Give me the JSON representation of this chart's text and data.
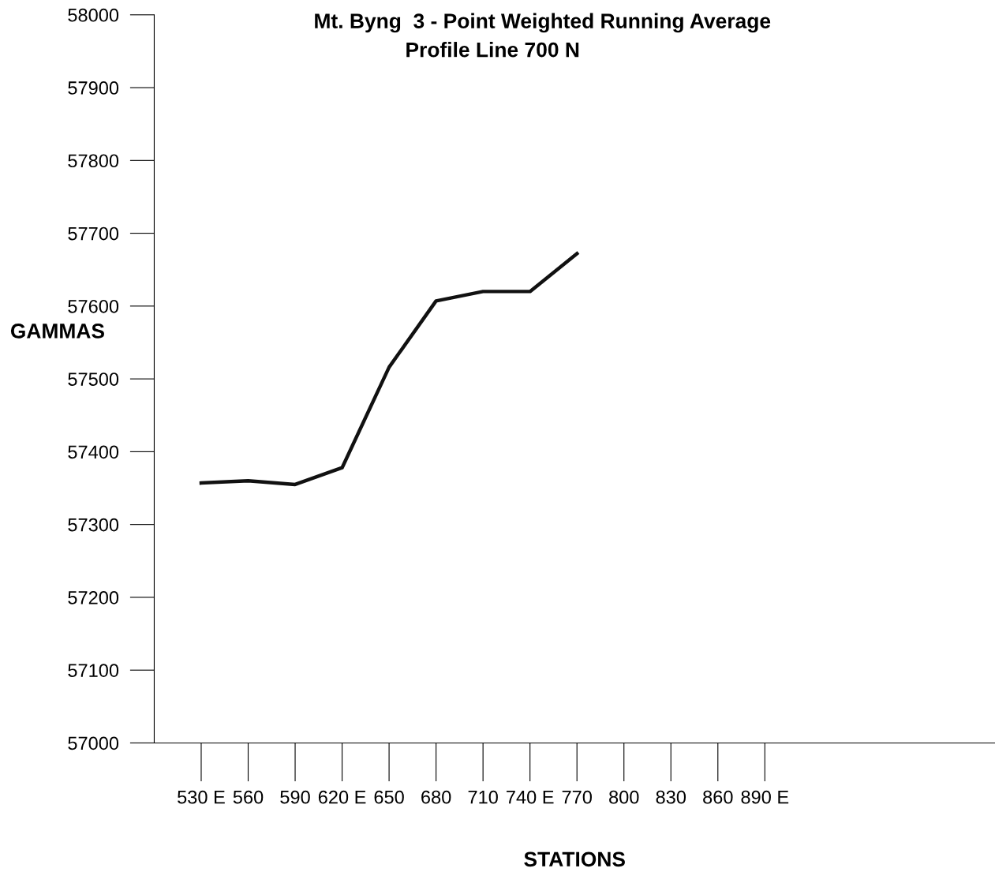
{
  "chart_data": {
    "type": "line",
    "title": "Mt. Byng  3 - Point Weighted Running Average",
    "subtitle": "Profile Line 700 N",
    "xlabel": "STATIONS",
    "ylabel": "GAMMAS",
    "categories": [
      "530 E",
      "560",
      "590",
      "620 E",
      "650",
      "680",
      "710",
      "740 E",
      "770",
      "800",
      "830",
      "860",
      "890 E"
    ],
    "series": [
      {
        "color": "#111111",
        "values": [
          57357,
          57360,
          57355,
          57378,
          57516,
          57607,
          57620,
          57620,
          57672,
          null,
          null,
          null,
          null
        ]
      }
    ],
    "ylim": [
      57000,
      58000
    ],
    "yticks": [
      57000,
      57100,
      57200,
      57300,
      57400,
      57500,
      57600,
      57700,
      57800,
      57900,
      58000
    ],
    "grid": false,
    "legend": false,
    "marker": "none",
    "line_style": "solid"
  }
}
